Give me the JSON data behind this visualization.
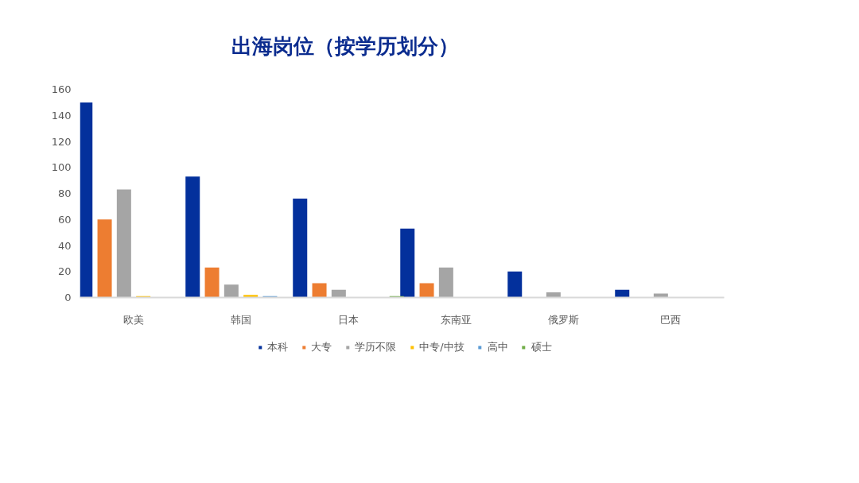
{
  "chart_data": {
    "type": "bar",
    "title": "出海岗位（按学历划分）",
    "categories": [
      "欧美",
      "韩国",
      "日本",
      "东南亚",
      "俄罗斯",
      "巴西"
    ],
    "series": [
      {
        "name": "本科",
        "color": "#03309c",
        "values": [
          150,
          93,
          76,
          53,
          20,
          6
        ]
      },
      {
        "name": "大专",
        "color": "#ed7d31",
        "values": [
          60,
          23,
          11,
          11,
          null,
          null
        ]
      },
      {
        "name": "学历不限",
        "color": "#a5a5a5",
        "values": [
          83,
          10,
          6,
          23,
          4,
          3
        ]
      },
      {
        "name": "中专/中技",
        "color": "#ffc000",
        "values": [
          1,
          2,
          null,
          null,
          null,
          null
        ]
      },
      {
        "name": "高中",
        "color": "#5b9bd5",
        "values": [
          null,
          1,
          null,
          null,
          null,
          null
        ]
      },
      {
        "name": "硕士",
        "color": "#70ad47",
        "values": [
          null,
          null,
          1,
          null,
          null,
          null
        ]
      }
    ],
    "ylim": [
      0,
      160
    ],
    "yticks": [
      0,
      20,
      40,
      60,
      80,
      100,
      120,
      140,
      160
    ],
    "grid": false,
    "legend": "bottom"
  }
}
